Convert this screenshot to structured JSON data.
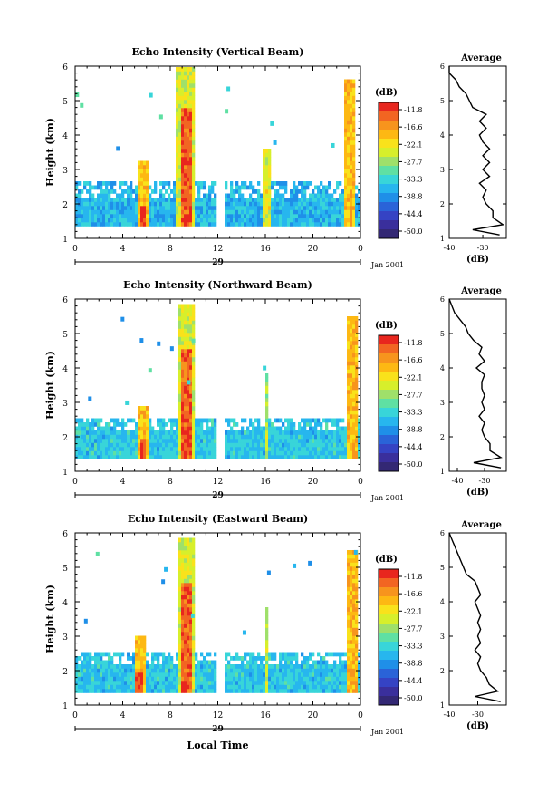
{
  "figure": {
    "date_label": "Jan 2001",
    "day_label": "29",
    "bottom_xlabel": "Local Time",
    "colorbar_unit": "(dB)",
    "colorbar_ticks": [
      "-11.8",
      "-16.6",
      "-22.1",
      "-27.7",
      "-33.3",
      "-38.8",
      "-44.4",
      "-50.0"
    ],
    "colorbar_colors": [
      "#e8261e",
      "#f26522",
      "#f7941d",
      "#fdb813",
      "#f9e21b",
      "#d7ef2b",
      "#9fe06a",
      "#5fe0a3",
      "#38d5d9",
      "#27b6ee",
      "#1f8fe8",
      "#2a63d8",
      "#3543c4",
      "#3a2f9c",
      "#332874"
    ]
  },
  "chart_data": [
    {
      "type": "heatmap",
      "title": "Echo Intensity (Vertical Beam)",
      "ylabel": "Height (km)",
      "xlim": [
        0,
        24
      ],
      "ylim": [
        1,
        6
      ],
      "xticks": [
        "0",
        "4",
        "8",
        "12",
        "16",
        "20",
        "0"
      ],
      "yticks": [
        "1",
        "2",
        "3",
        "4",
        "5",
        "6"
      ],
      "color_range_db": [
        -50.0,
        -11.8
      ],
      "gaps_hours": [
        [
          12.0,
          12.5
        ]
      ],
      "bands": [
        {
          "t": [
            0.0,
            24.0
          ],
          "h": [
            1.35,
            2.6
          ],
          "db": -36
        },
        {
          "t": [
            5.2,
            6.2
          ],
          "h": [
            1.35,
            3.2
          ],
          "db": -20
        },
        {
          "t": [
            5.4,
            5.9
          ],
          "h": [
            1.35,
            1.9
          ],
          "db": -13
        },
        {
          "t": [
            8.5,
            10.0
          ],
          "h": [
            1.35,
            6.0
          ],
          "db": -25
        },
        {
          "t": [
            8.8,
            9.8
          ],
          "h": [
            1.35,
            4.8
          ],
          "db": -14
        },
        {
          "t": [
            15.8,
            16.4
          ],
          "h": [
            1.35,
            3.6
          ],
          "db": -24
        },
        {
          "t": [
            22.7,
            23.6
          ],
          "h": [
            1.35,
            5.6
          ],
          "db": -20
        }
      ],
      "average": {
        "title": "Average",
        "xlabel": "(dB)",
        "xlim": [
          -40,
          -23
        ],
        "xticks": [
          "-40",
          "-30"
        ],
        "height_km": [
          1.1,
          1.25,
          1.4,
          1.6,
          1.8,
          2.0,
          2.2,
          2.4,
          2.6,
          2.8,
          3.0,
          3.2,
          3.4,
          3.6,
          3.8,
          4.0,
          4.2,
          4.4,
          4.6,
          4.8,
          5.0,
          5.2,
          5.4,
          5.6,
          5.8,
          6.0
        ],
        "db": [
          -25,
          -33,
          -24,
          -27,
          -27,
          -29,
          -30,
          -29,
          -31,
          -28,
          -30,
          -28,
          -30,
          -28,
          -30,
          -31,
          -29,
          -31,
          -29,
          -33,
          -34,
          -35,
          -37,
          -38,
          -40,
          -40
        ]
      }
    },
    {
      "type": "heatmap",
      "title": "Echo Intensity (Northward Beam)",
      "ylabel": "Height (km)",
      "xlim": [
        0,
        24
      ],
      "ylim": [
        1,
        6
      ],
      "xticks": [
        "0",
        "4",
        "8",
        "12",
        "16",
        "20",
        "0"
      ],
      "yticks": [
        "1",
        "2",
        "3",
        "4",
        "5",
        "6"
      ],
      "color_range_db": [
        -50.0,
        -11.8
      ],
      "gaps_hours": [
        [
          12.0,
          12.5
        ]
      ],
      "bands": [
        {
          "t": [
            0.0,
            24.0
          ],
          "h": [
            1.35,
            2.5
          ],
          "db": -35
        },
        {
          "t": [
            5.3,
            6.1
          ],
          "h": [
            1.35,
            2.9
          ],
          "db": -21
        },
        {
          "t": [
            5.5,
            5.9
          ],
          "h": [
            1.35,
            1.9
          ],
          "db": -13
        },
        {
          "t": [
            8.6,
            10.0
          ],
          "h": [
            1.35,
            5.9
          ],
          "db": -25
        },
        {
          "t": [
            8.9,
            9.8
          ],
          "h": [
            1.35,
            4.6
          ],
          "db": -14
        },
        {
          "t": [
            15.9,
            16.3
          ],
          "h": [
            1.35,
            3.8
          ],
          "db": -27
        },
        {
          "t": [
            22.8,
            23.7
          ],
          "h": [
            1.35,
            5.5
          ],
          "db": -20
        }
      ],
      "average": {
        "title": "Average",
        "xlabel": "(dB)",
        "xlim": [
          -43,
          -22
        ],
        "xticks": [
          "-40",
          "-30"
        ],
        "height_km": [
          1.1,
          1.25,
          1.4,
          1.6,
          1.8,
          2.0,
          2.2,
          2.4,
          2.6,
          2.8,
          3.0,
          3.2,
          3.4,
          3.6,
          3.8,
          4.0,
          4.2,
          4.4,
          4.6,
          4.8,
          5.0,
          5.2,
          5.4,
          5.6,
          5.8,
          6.0
        ],
        "db": [
          -24,
          -34,
          -24,
          -28,
          -28,
          -30,
          -31,
          -30,
          -32,
          -30,
          -31,
          -30,
          -31,
          -31,
          -30,
          -33,
          -30,
          -32,
          -31,
          -34,
          -36,
          -37,
          -39,
          -41,
          -42,
          -43
        ]
      }
    },
    {
      "type": "heatmap",
      "title": "Echo Intensity (Eastward Beam)",
      "ylabel": "Height (km)",
      "xlim": [
        0,
        24
      ],
      "ylim": [
        1,
        6
      ],
      "xticks": [
        "0",
        "4",
        "8",
        "12",
        "16",
        "20",
        "0"
      ],
      "yticks": [
        "1",
        "2",
        "3",
        "4",
        "5",
        "6"
      ],
      "color_range_db": [
        -50.0,
        -11.8
      ],
      "gaps_hours": [
        [
          12.0,
          12.5
        ]
      ],
      "bands": [
        {
          "t": [
            0.0,
            24.0
          ],
          "h": [
            1.35,
            2.5
          ],
          "db": -35
        },
        {
          "t": [
            5.0,
            6.0
          ],
          "h": [
            1.35,
            3.0
          ],
          "db": -21
        },
        {
          "t": [
            5.1,
            5.8
          ],
          "h": [
            1.35,
            2.0
          ],
          "db": -13
        },
        {
          "t": [
            8.6,
            10.0
          ],
          "h": [
            1.35,
            5.9
          ],
          "db": -25
        },
        {
          "t": [
            8.9,
            9.8
          ],
          "h": [
            1.35,
            4.6
          ],
          "db": -14
        },
        {
          "t": [
            15.9,
            16.3
          ],
          "h": [
            1.35,
            3.8
          ],
          "db": -27
        },
        {
          "t": [
            22.8,
            23.7
          ],
          "h": [
            1.35,
            5.5
          ],
          "db": -20
        }
      ],
      "average": {
        "title": "Average",
        "xlabel": "(dB)",
        "xlim": [
          -40,
          -20
        ],
        "xticks": [
          "-40",
          "-30"
        ],
        "height_km": [
          1.1,
          1.25,
          1.4,
          1.6,
          1.8,
          2.0,
          2.2,
          2.4,
          2.6,
          2.8,
          3.0,
          3.2,
          3.4,
          3.6,
          3.8,
          4.0,
          4.2,
          4.4,
          4.6,
          4.8,
          5.0,
          5.2,
          5.4,
          5.6,
          5.8,
          6.0
        ],
        "db": [
          -22,
          -31,
          -23,
          -26,
          -27,
          -29,
          -30,
          -29,
          -31,
          -29,
          -30,
          -29,
          -30,
          -29,
          -30,
          -31,
          -29,
          -30,
          -31,
          -34,
          -35,
          -36,
          -37,
          -38,
          -39,
          -40
        ]
      }
    }
  ]
}
